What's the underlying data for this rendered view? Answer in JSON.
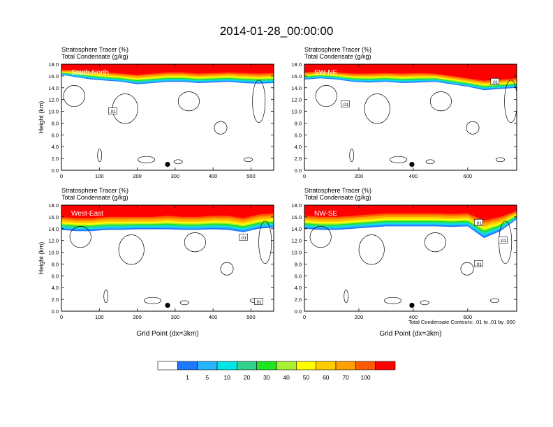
{
  "figure": {
    "title": "2014-01-28_00:00:00",
    "footnote": "Total Condensate Contours: .01 to .01 by .000"
  },
  "colors": {
    "scale": [
      "#ffffff",
      "#1e78ff",
      "#28b4ff",
      "#00e6e6",
      "#32d28c",
      "#1ee61e",
      "#aaf032",
      "#ffff00",
      "#ffcc00",
      "#ffa000",
      "#ff5a00",
      "#ff0000"
    ],
    "contour": "#000000",
    "marker": "#000000"
  },
  "colorbar": {
    "labels": [
      "1",
      "5",
      "10",
      "20",
      "30",
      "40",
      "50",
      "60",
      "70",
      "100"
    ]
  },
  "chart_data": [
    {
      "type": "contour",
      "panel": "South-North",
      "title_line1": "Stratosphere Tracer   (%)",
      "title_line2": "Total Condensate   (g/kg)",
      "ylabel": "Height (km)",
      "xlabel": "",
      "xlim": [
        0,
        560
      ],
      "ylim": [
        0,
        18
      ],
      "x_ticks": [
        "0",
        "100",
        "200",
        "300",
        "400",
        "500"
      ],
      "x_tick_values": [
        0,
        100,
        200,
        300,
        400,
        500
      ],
      "y_ticks": [
        "0.0",
        "2.0",
        "4.0",
        "6.0",
        "8.0",
        "10.0",
        "12.0",
        "14.0",
        "16.0",
        "18.0"
      ],
      "contour_label": ".01",
      "contour_label_at": [
        135,
        10.0
      ],
      "marker_at": [
        280,
        1.0
      ],
      "tracer_profile": {
        "x": [
          0,
          40,
          80,
          120,
          160,
          200,
          240,
          280,
          320,
          360,
          400,
          440,
          480,
          520,
          560
        ],
        "base_km": [
          16.2,
          15.8,
          15.4,
          15.2,
          15.0,
          14.6,
          14.8,
          15.0,
          15.0,
          14.8,
          14.9,
          15.0,
          14.8,
          14.7,
          14.8
        ],
        "red_km": [
          17.0,
          17.0,
          16.8,
          16.6,
          16.4,
          16.2,
          16.4,
          16.6,
          16.6,
          16.4,
          16.5,
          16.6,
          16.5,
          16.4,
          16.5
        ]
      }
    },
    {
      "type": "contour",
      "panel": "SW-NE",
      "title_line1": "Stratosphere Tracer   (%)",
      "title_line2": "Total Condensate   (g/kg)",
      "ylabel": "",
      "xlabel": "",
      "xlim": [
        0,
        780
      ],
      "ylim": [
        0,
        18
      ],
      "x_ticks": [
        "0",
        "200",
        "400",
        "600"
      ],
      "x_tick_values": [
        0,
        200,
        400,
        600
      ],
      "y_ticks": [
        "0.0",
        "2.0",
        "4.0",
        "6.0",
        "8.0",
        "10.0",
        "12.0",
        "14.0",
        "16.0",
        "18.0"
      ],
      "contour_label": ".01",
      "contour_label_at": [
        150,
        11.2
      ],
      "contour_label_2": ".01",
      "contour_label_2_at": [
        700,
        15.0
      ],
      "marker_at": [
        395,
        1.0
      ],
      "tracer_profile": {
        "x": [
          0,
          60,
          120,
          180,
          240,
          300,
          360,
          420,
          480,
          540,
          600,
          660,
          720,
          780
        ],
        "base_km": [
          15.4,
          15.6,
          15.4,
          15.0,
          14.9,
          15.0,
          14.8,
          14.9,
          15.0,
          14.6,
          14.2,
          13.6,
          13.8,
          14.0
        ],
        "red_km": [
          16.6,
          16.8,
          16.6,
          16.4,
          16.4,
          16.5,
          16.4,
          16.5,
          16.4,
          16.0,
          15.6,
          15.2,
          15.4,
          15.6
        ]
      }
    },
    {
      "type": "contour",
      "panel": "West-East",
      "title_line1": "Stratosphere Tracer   (%)",
      "title_line2": "Total Condensate   (g/kg)",
      "ylabel": "Height (km)",
      "xlabel": "Grid Point (dx=3km)",
      "xlim": [
        0,
        560
      ],
      "ylim": [
        0,
        18
      ],
      "x_ticks": [
        "0",
        "100",
        "200",
        "300",
        "400",
        "500"
      ],
      "x_tick_values": [
        0,
        100,
        200,
        300,
        400,
        500
      ],
      "y_ticks": [
        "0.0",
        "2.0",
        "4.0",
        "6.0",
        "8.0",
        "10.0",
        "12.0",
        "14.0",
        "16.0",
        "18.0"
      ],
      "contour_label": ".01",
      "contour_label_at": [
        480,
        12.5
      ],
      "contour_label_2": ".01",
      "contour_label_2_at": [
        520,
        1.6
      ],
      "marker_at": [
        280,
        1.0
      ],
      "tracer_profile": {
        "x": [
          0,
          40,
          80,
          120,
          160,
          200,
          240,
          280,
          320,
          360,
          400,
          440,
          480,
          520,
          560
        ],
        "base_km": [
          13.8,
          13.6,
          13.6,
          13.8,
          13.8,
          13.9,
          13.9,
          13.9,
          13.8,
          13.8,
          13.9,
          13.8,
          13.4,
          14.0,
          14.2
        ],
        "red_km": [
          16.0,
          15.8,
          15.8,
          16.0,
          16.0,
          16.0,
          16.0,
          16.2,
          16.0,
          16.0,
          16.2,
          16.2,
          15.8,
          16.4,
          16.6
        ]
      }
    },
    {
      "type": "contour",
      "panel": "NW-SE",
      "title_line1": "Stratosphere Tracer   (%)",
      "title_line2": "Total Condensate   (g/kg)",
      "ylabel": "",
      "xlabel": "Grid Point (dx=3km)",
      "xlim": [
        0,
        780
      ],
      "ylim": [
        0,
        18
      ],
      "x_ticks": [
        "0",
        "200",
        "400",
        "600"
      ],
      "x_tick_values": [
        0,
        200,
        400,
        600
      ],
      "y_ticks": [
        "0.0",
        "2.0",
        "4.0",
        "6.0",
        "8.0",
        "10.0",
        "12.0",
        "14.0",
        "16.0",
        "18.0"
      ],
      "contour_label": ".01",
      "contour_label_at": [
        730,
        12.0
      ],
      "contour_label_2": ".01",
      "contour_label_2_at": [
        640,
        8.0
      ],
      "contour_label_3": ".01",
      "contour_label_3_at": [
        640,
        15.0
      ],
      "marker_at": [
        395,
        1.0
      ],
      "tracer_profile": {
        "x": [
          0,
          60,
          120,
          180,
          240,
          300,
          360,
          420,
          480,
          540,
          600,
          660,
          720,
          780
        ],
        "base_km": [
          14.0,
          13.8,
          13.8,
          14.0,
          14.2,
          14.4,
          14.4,
          14.4,
          14.4,
          14.3,
          14.4,
          12.4,
          13.6,
          15.6
        ],
        "red_km": [
          16.2,
          16.0,
          16.0,
          16.2,
          16.4,
          16.6,
          16.6,
          16.6,
          16.6,
          16.5,
          16.6,
          15.4,
          16.0,
          17.0
        ]
      }
    }
  ]
}
